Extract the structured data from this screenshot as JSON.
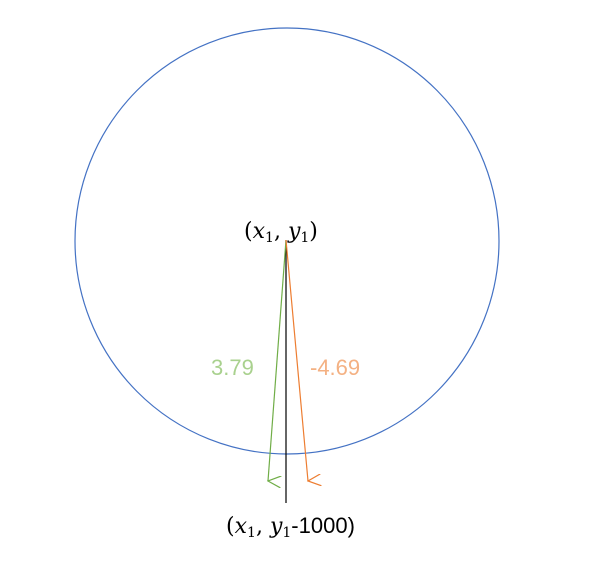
{
  "diagram": {
    "center_label": {
      "open": "(",
      "x": "x",
      "x_sub": "1",
      "sep": ", ",
      "y": "y",
      "y_sub": "1",
      "close": ")"
    },
    "bottom_label": {
      "open": "(",
      "x": "x",
      "x_sub": "1",
      "sep": ", ",
      "y": "y",
      "y_sub": "1",
      "suffix": "-1000)"
    },
    "angle_left": "3.79",
    "angle_right": "-4.69",
    "colors": {
      "circle": "#4472C4",
      "green_arrow": "#70AD47",
      "orange_arrow": "#ED7D31",
      "green_text": "#A9D18E",
      "orange_text": "#F4B183",
      "axis": "#000000"
    }
  }
}
